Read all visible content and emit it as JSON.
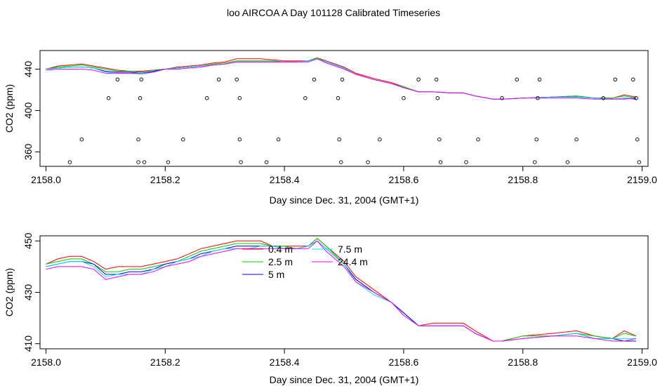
{
  "title": "loo AIRCOA A  Day 101128  Calibrated Timeseries",
  "colors": {
    "0.4 m": "#ff0000",
    "2.5 m": "#00cd00",
    "5 m": "#0000ff",
    "7.5 m": "#00e5ee",
    "24.4 m": "#ff00ff",
    "points": "#000000"
  },
  "chart_data": [
    {
      "type": "line",
      "xlabel": "Day since Dec. 31, 2004 (GMT+1)",
      "ylabel": "CO2 (ppm)",
      "xlim": [
        2157.99,
        2159.01
      ],
      "ylim": [
        346,
        458
      ],
      "xticks": [
        2158.0,
        2158.2,
        2158.4,
        2158.6,
        2158.8,
        2159.0
      ],
      "xtick_labels": [
        "2158.0",
        "2158.2",
        "2158.4",
        "2158.6",
        "2158.8",
        "2159.0"
      ],
      "yticks": [
        360,
        400,
        440
      ],
      "ytick_labels": [
        "360",
        "400",
        "440"
      ],
      "x": [
        2158.0,
        2158.02,
        2158.04,
        2158.06,
        2158.08,
        2158.1,
        2158.12,
        2158.14,
        2158.16,
        2158.18,
        2158.2,
        2158.22,
        2158.24,
        2158.26,
        2158.28,
        2158.3,
        2158.32,
        2158.34,
        2158.36,
        2158.38,
        2158.4,
        2158.42,
        2158.44,
        2158.455,
        2158.47,
        2158.5,
        2158.52,
        2158.55,
        2158.58,
        2158.6,
        2158.625,
        2158.65,
        2158.68,
        2158.7,
        2158.72,
        2158.75,
        2158.765,
        2158.8,
        2158.85,
        2158.89,
        2158.92,
        2158.95,
        2158.97,
        2158.99
      ],
      "series": [
        {
          "name": "0.4 m",
          "values": [
            440,
            443,
            444,
            445,
            443,
            441,
            439,
            438,
            438,
            439,
            440,
            442,
            443,
            444,
            446,
            447,
            450,
            450,
            450,
            449,
            448,
            448,
            448,
            451,
            448,
            442,
            436,
            431,
            427,
            423,
            418,
            418,
            417,
            417,
            414,
            411,
            411,
            412,
            413,
            414,
            412,
            412,
            415,
            413
          ]
        },
        {
          "name": "2.5 m",
          "values": [
            440,
            442,
            443,
            444,
            442,
            440,
            438,
            438,
            437,
            439,
            440,
            441,
            442,
            443,
            445,
            446,
            448,
            448,
            448,
            448,
            447,
            447,
            448,
            451,
            447,
            441,
            435,
            430,
            426,
            423,
            418,
            418,
            417,
            417,
            414,
            411,
            411,
            412,
            413,
            414,
            412,
            412,
            414,
            412
          ]
        },
        {
          "name": "5 m",
          "values": [
            440,
            441,
            442,
            442,
            441,
            438,
            437,
            437,
            436,
            438,
            440,
            441,
            442,
            443,
            444,
            445,
            447,
            447,
            447,
            447,
            447,
            447,
            448,
            450,
            447,
            441,
            435,
            430,
            426,
            422,
            418,
            418,
            417,
            417,
            414,
            411,
            411,
            412,
            413,
            413,
            412,
            411,
            412,
            411
          ]
        },
        {
          "name": "7.5 m",
          "values": [
            440,
            441,
            442,
            442,
            441,
            437,
            436,
            436,
            435,
            437,
            440,
            441,
            442,
            443,
            444,
            445,
            447,
            447,
            447,
            447,
            447,
            447,
            448,
            450,
            447,
            441,
            435,
            430,
            426,
            422,
            418,
            418,
            417,
            417,
            414,
            411,
            411,
            412,
            413,
            413,
            412,
            411,
            412,
            412
          ]
        },
        {
          "name": "24.4 m",
          "values": [
            439,
            440,
            440,
            440,
            439,
            436,
            436,
            436,
            436,
            437,
            440,
            440,
            441,
            442,
            444,
            445,
            447,
            447,
            447,
            447,
            447,
            447,
            447,
            450,
            446,
            440,
            435,
            430,
            426,
            422,
            418,
            418,
            417,
            417,
            414,
            411,
            411,
            412,
            412,
            412,
            411,
            411,
            411,
            412
          ]
        }
      ],
      "scatter": {
        "name": "points",
        "x": [
          2158.04,
          2158.06,
          2158.105,
          2158.12,
          2158.155,
          2158.155,
          2158.158,
          2158.16,
          2158.165,
          2158.205,
          2158.23,
          2158.27,
          2158.29,
          2158.32,
          2158.325,
          2158.325,
          2158.327,
          2158.37,
          2158.39,
          2158.435,
          2158.45,
          2158.49,
          2158.492,
          2158.495,
          2158.497,
          2158.54,
          2158.56,
          2158.6,
          2158.625,
          2158.655,
          2158.657,
          2158.66,
          2158.662,
          2158.705,
          2158.725,
          2158.765,
          2158.79,
          2158.82,
          2158.823,
          2158.825,
          2158.828,
          2158.875,
          2158.89,
          2158.935,
          2158.955,
          2158.985,
          2158.99,
          2158.992,
          2158.995
        ],
        "y": [
          350,
          372,
          412,
          430,
          350,
          372,
          412,
          430,
          350,
          350,
          372,
          412,
          430,
          430,
          412,
          372,
          350,
          350,
          372,
          412,
          430,
          412,
          372,
          350,
          430,
          350,
          372,
          412,
          430,
          430,
          412,
          372,
          350,
          350,
          372,
          412,
          430,
          350,
          372,
          412,
          430,
          350,
          372,
          412,
          430,
          430,
          412,
          372,
          350
        ]
      }
    },
    {
      "type": "line",
      "xlabel": "Day since Dec. 31, 2004 (GMT+1)",
      "ylabel": "CO2 (ppm)",
      "xlim": [
        2157.99,
        2159.01
      ],
      "ylim": [
        408,
        452
      ],
      "xticks": [
        2158.0,
        2158.2,
        2158.4,
        2158.6,
        2158.8,
        2159.0
      ],
      "xtick_labels": [
        "2158.0",
        "2158.2",
        "2158.4",
        "2158.6",
        "2158.8",
        "2159.0"
      ],
      "yticks": [
        410,
        430,
        450
      ],
      "ytick_labels": [
        "410",
        "430",
        "450"
      ],
      "legend": {
        "placement": "top-center",
        "entries": [
          "0.4 m",
          "2.5 m",
          "5 m",
          "7.5 m",
          "24.4 m"
        ]
      },
      "x": [
        2158.0,
        2158.02,
        2158.04,
        2158.06,
        2158.08,
        2158.1,
        2158.12,
        2158.14,
        2158.16,
        2158.18,
        2158.2,
        2158.22,
        2158.24,
        2158.26,
        2158.28,
        2158.3,
        2158.32,
        2158.34,
        2158.36,
        2158.38,
        2158.4,
        2158.42,
        2158.44,
        2158.455,
        2158.47,
        2158.5,
        2158.52,
        2158.55,
        2158.58,
        2158.6,
        2158.625,
        2158.65,
        2158.68,
        2158.7,
        2158.72,
        2158.75,
        2158.765,
        2158.8,
        2158.85,
        2158.89,
        2158.92,
        2158.95,
        2158.97,
        2158.99
      ],
      "series": [
        {
          "name": "0.4 m",
          "values": [
            441,
            443,
            444,
            444,
            442,
            439,
            440,
            440,
            440,
            441,
            442,
            443,
            445,
            447,
            448,
            449,
            450,
            450,
            450,
            448,
            448,
            448,
            448,
            451,
            448,
            442,
            436,
            431,
            426,
            422,
            417,
            418,
            418,
            418,
            415,
            411,
            411,
            413,
            414,
            415,
            413,
            412,
            415,
            413
          ]
        },
        {
          "name": "2.5 m",
          "values": [
            441,
            442,
            443,
            443,
            441,
            438,
            438,
            439,
            439,
            440,
            441,
            442,
            444,
            446,
            447,
            448,
            449,
            449,
            449,
            448,
            448,
            447,
            448,
            451,
            448,
            441,
            435,
            430,
            426,
            422,
            417,
            417,
            417,
            417,
            414,
            411,
            411,
            413,
            413,
            414,
            413,
            412,
            414,
            413
          ]
        },
        {
          "name": "5 m",
          "values": [
            440,
            441,
            442,
            442,
            441,
            437,
            437,
            438,
            438,
            439,
            441,
            442,
            443,
            445,
            446,
            447,
            448,
            448,
            448,
            448,
            447,
            447,
            448,
            450,
            447,
            441,
            435,
            430,
            426,
            422,
            417,
            417,
            417,
            417,
            414,
            411,
            411,
            412,
            413,
            414,
            412,
            412,
            411,
            411
          ]
        },
        {
          "name": "7.5 m",
          "values": [
            440,
            441,
            442,
            442,
            440,
            436,
            437,
            437,
            437,
            439,
            440,
            442,
            443,
            444,
            446,
            447,
            447,
            447,
            448,
            448,
            447,
            447,
            448,
            450,
            447,
            441,
            434,
            429,
            426,
            421,
            417,
            417,
            417,
            417,
            414,
            411,
            411,
            412,
            413,
            414,
            412,
            412,
            412,
            412
          ]
        },
        {
          "name": "24.4 m",
          "values": [
            439,
            440,
            440,
            440,
            439,
            435,
            436,
            437,
            437,
            438,
            440,
            441,
            442,
            444,
            445,
            446,
            447,
            447,
            447,
            447,
            447,
            447,
            447,
            450,
            446,
            440,
            434,
            430,
            426,
            421,
            417,
            417,
            417,
            417,
            414,
            411,
            411,
            412,
            413,
            413,
            412,
            411,
            411,
            412
          ]
        }
      ]
    }
  ]
}
